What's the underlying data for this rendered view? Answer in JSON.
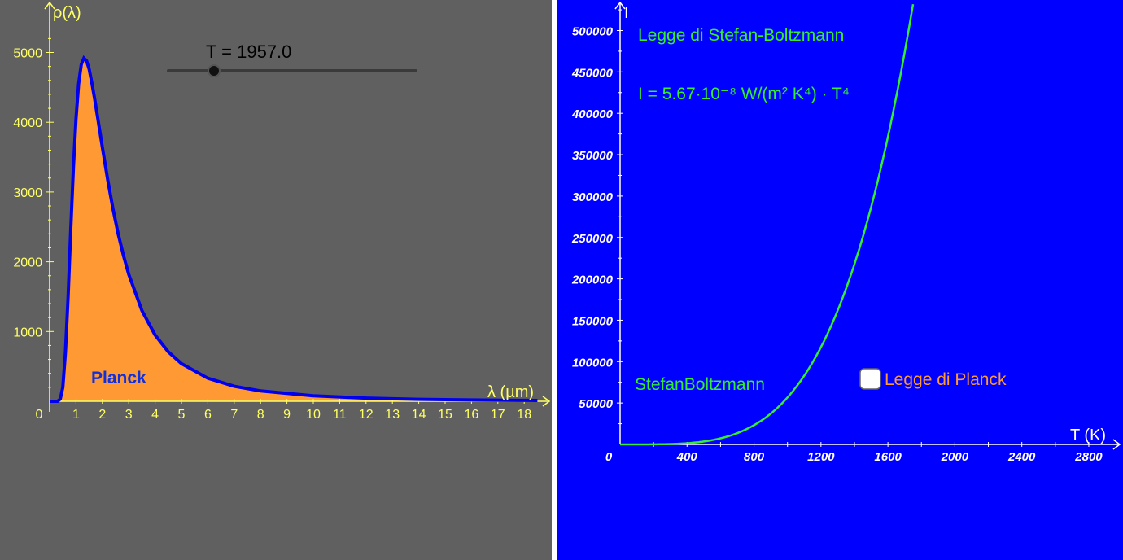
{
  "colors": {
    "left_bg": "#606060",
    "right_bg": "#0000ff",
    "left_axis": "#ffff66",
    "planck_fill": "#ff9933",
    "planck_curve": "#0000ee",
    "planck_label": "#1030dd",
    "right_axis": "#ffffff",
    "sb_curve": "#33ee33",
    "sb_text": "#33ee33",
    "checkbox_label": "#ff9933",
    "slider_track": "#3a3a3a",
    "slider_handle": "#111111",
    "slider_text": "#000000"
  },
  "slider": {
    "label": "T = 1957.0",
    "value": 1957.0,
    "min": 0,
    "max": 5000
  },
  "planck_label": "Planck",
  "sb_title": "Legge di Stefan-Boltzmann",
  "sb_formula": "I = 5.67·10⁻⁸ W/(m² K⁴) · T⁴",
  "sb_curve_label": "StefanBoltzmann",
  "checkbox": {
    "label": "Legge di Planck",
    "checked": false
  },
  "chart_data": [
    {
      "type": "area",
      "title": "",
      "xlabel": "λ (µm)",
      "ylabel": "ρ(λ)",
      "xlim": [
        0,
        18.5
      ],
      "ylim": [
        0,
        5000
      ],
      "x_ticks": [
        "0",
        "1",
        "2",
        "3",
        "4",
        "5",
        "6",
        "7",
        "8",
        "9",
        "10",
        "11",
        "12",
        "13",
        "14",
        "15",
        "16",
        "17",
        "18"
      ],
      "y_ticks": [
        "1000",
        "2000",
        "3000",
        "4000",
        "5000"
      ],
      "series": [
        {
          "x": [
            0,
            0.3,
            0.4,
            0.5,
            0.6,
            0.7,
            0.8,
            0.9,
            1.0,
            1.1,
            1.2,
            1.3,
            1.4,
            1.5,
            1.6,
            1.7,
            1.8,
            2.0,
            2.2,
            2.4,
            2.6,
            2.8,
            3.0,
            3.5,
            4.0,
            4.5,
            5.0,
            6.0,
            7.0,
            8.0,
            10.0,
            12.0,
            14.0,
            16.0,
            18.0,
            18.5
          ],
          "y": [
            0,
            0,
            30,
            200,
            700,
            1500,
            2450,
            3350,
            4050,
            4550,
            4830,
            4920,
            4880,
            4760,
            4570,
            4350,
            4120,
            3640,
            3180,
            2760,
            2400,
            2090,
            1820,
            1300,
            950,
            710,
            540,
            330,
            215,
            148,
            78,
            45,
            28,
            19,
            13,
            12
          ]
        }
      ]
    },
    {
      "type": "line",
      "title": "",
      "xlabel": "T (K)",
      "ylabel": "I",
      "xlim": [
        0,
        2900
      ],
      "ylim": [
        0,
        530000
      ],
      "x_ticks": [
        "0",
        "400",
        "800",
        "1200",
        "1600",
        "2000",
        "2400",
        "2800"
      ],
      "y_ticks": [
        "50000",
        "100000",
        "150000",
        "200000",
        "250000",
        "300000",
        "350000",
        "400000",
        "450000",
        "500000"
      ],
      "series": [
        {
          "x": [
            0,
            200,
            400,
            600,
            800,
            1000,
            1200,
            1400,
            1600,
            1700,
            1757
          ],
          "y": [
            0,
            91,
            1452,
            7348,
            23224,
            56700,
            117573,
            217816,
            371589,
            473554,
            540000
          ]
        }
      ]
    }
  ]
}
